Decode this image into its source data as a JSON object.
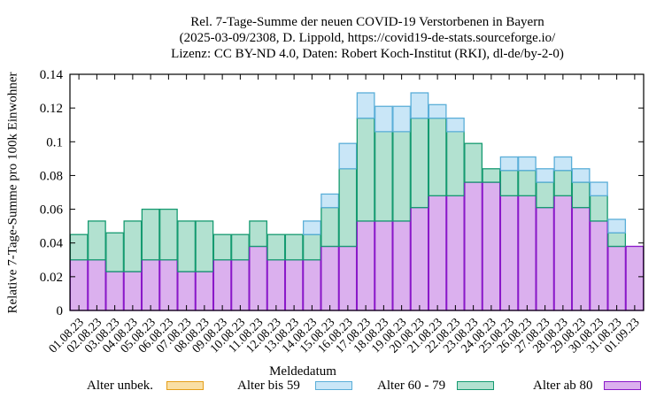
{
  "chart_data": {
    "type": "bar",
    "stacked": true,
    "title_lines": [
      "Rel. 7-Tage-Summe der neuen COVID-19 Verstorbenen in Bayern",
      "(2025-03-09/2308, D. Lippold, https://covid19-de-stats.sourceforge.io/",
      "Lizenz: CC BY-ND 4.0, Daten: Robert Koch-Institut (RKI), dl-de/by-2-0)"
    ],
    "xlabel": "Meldedatum",
    "ylabel": "Relative 7-Tage-Summe pro 100k Einwohner",
    "ylim": [
      0,
      0.14
    ],
    "yticks": [
      "0",
      "0.02",
      "0.04",
      "0.06",
      "0.08",
      "0.1",
      "0.12",
      "0.14"
    ],
    "grid": false,
    "legend_position": "bottom",
    "categories": [
      "01.08.23",
      "02.08.23",
      "03.08.23",
      "04.08.23",
      "05.08.23",
      "06.08.23",
      "07.08.23",
      "08.08.23",
      "09.08.23",
      "10.08.23",
      "11.08.23",
      "12.08.23",
      "13.08.23",
      "14.08.23",
      "15.08.23",
      "16.08.23",
      "17.08.23",
      "18.08.23",
      "19.08.23",
      "20.08.23",
      "21.08.23",
      "22.08.23",
      "23.08.23",
      "24.08.23",
      "25.08.23",
      "26.08.23",
      "27.08.23",
      "28.08.23",
      "29.08.23",
      "30.08.23",
      "31.08.23",
      "01.09.23"
    ],
    "series": [
      {
        "name": "Alter unbek.",
        "fill": "#f9dfa4",
        "stroke": "#e59f1a",
        "values": [
          0,
          0,
          0,
          0,
          0,
          0,
          0,
          0,
          0,
          0,
          0,
          0,
          0,
          0,
          0,
          0,
          0,
          0,
          0,
          0,
          0,
          0,
          0,
          0,
          0,
          0,
          0,
          0,
          0,
          0,
          0,
          0
        ]
      },
      {
        "name": "Alter bis 59",
        "fill": "#c9e6f7",
        "stroke": "#5aaed8",
        "values": [
          0,
          0,
          0,
          0,
          0,
          0,
          0,
          0,
          0,
          0,
          0,
          0,
          0,
          0.008,
          0.008,
          0.015,
          0.015,
          0.015,
          0.015,
          0.015,
          0.008,
          0.008,
          0,
          0,
          0.008,
          0.008,
          0.008,
          0.008,
          0.008,
          0.008,
          0.008,
          0
        ]
      },
      {
        "name": "Alter 60 - 79",
        "fill": "#b2e1d0",
        "stroke": "#159a70",
        "values": [
          0.015,
          0.023,
          0.023,
          0.03,
          0.03,
          0.03,
          0.03,
          0.03,
          0.015,
          0.015,
          0.015,
          0.015,
          0.015,
          0.015,
          0.023,
          0.046,
          0.061,
          0.053,
          0.053,
          0.053,
          0.046,
          0.038,
          0.023,
          0.008,
          0.015,
          0.015,
          0.015,
          0.015,
          0.015,
          0.015,
          0.008,
          0
        ]
      },
      {
        "name": "Alter ab 80",
        "fill": "#dbb0ee",
        "stroke": "#8a18c9",
        "values": [
          0.03,
          0.03,
          0.023,
          0.023,
          0.03,
          0.03,
          0.023,
          0.023,
          0.03,
          0.03,
          0.038,
          0.03,
          0.03,
          0.03,
          0.038,
          0.038,
          0.053,
          0.053,
          0.053,
          0.061,
          0.068,
          0.068,
          0.076,
          0.076,
          0.068,
          0.068,
          0.061,
          0.068,
          0.061,
          0.053,
          0.038,
          0.038
        ]
      }
    ]
  }
}
